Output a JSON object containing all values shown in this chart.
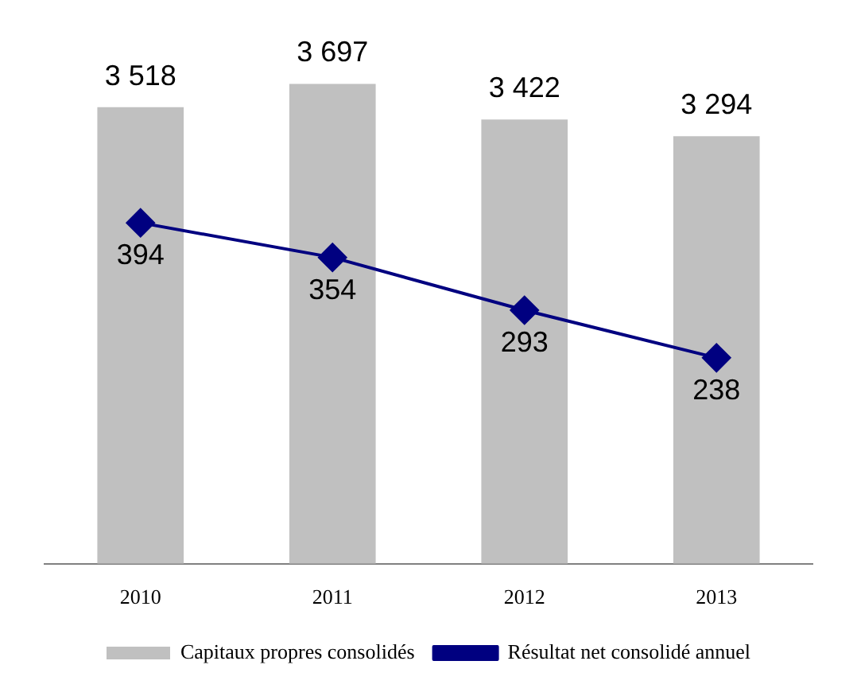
{
  "chart_data": {
    "type": "bar",
    "categories": [
      "2010",
      "2011",
      "2012",
      "2013"
    ],
    "series": [
      {
        "name": "Capitaux propres consolidés",
        "color": "#c0c0c0",
        "values": [
          3518,
          3697,
          3422,
          3294
        ]
      },
      {
        "name": "Résultat net consolidé annuel",
        "type": "line",
        "axis": "y2",
        "color": "#000080",
        "values": [
          394,
          354,
          293,
          238
        ]
      }
    ],
    "tick_labels": "x",
    "data_labels": true,
    "legend": "bottom",
    "marker": "diamond",
    "line_style": "solid",
    "grid": false
  }
}
